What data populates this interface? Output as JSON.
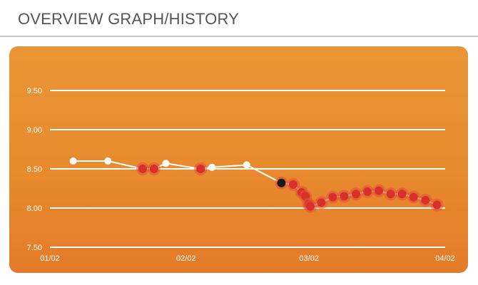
{
  "header": {
    "title": "OVERVIEW GRAPH/HISTORY"
  },
  "colors": {
    "background_top": "#e89636",
    "background_bottom": "#e47b2a",
    "line": "#ffffff",
    "point_white": "#ffffff",
    "point_red": "#d9302a",
    "point_red_halo": "#e0503a",
    "point_selected": "#1a1a1a"
  },
  "chart_data": {
    "type": "line",
    "title": "",
    "xlabel": "",
    "ylabel": "",
    "ylim": [
      7.5,
      9.5
    ],
    "yticks": [
      "9.50",
      "9.00",
      "8.50",
      "8.00",
      "7.50"
    ],
    "ytick_values": [
      9.5,
      9.0,
      8.5,
      8.0,
      7.5
    ],
    "xtick_labels": [
      "01/02",
      "02/02",
      "03/02",
      "04/02"
    ],
    "xtick_values": [
      0,
      31,
      59,
      90
    ],
    "xlim": [
      0,
      90
    ],
    "grid": true,
    "legend": "none",
    "series": [
      {
        "points": [
          {
            "x": 5.3,
            "y": 8.6,
            "kind": "white"
          },
          {
            "x": 13.2,
            "y": 8.6,
            "kind": "white"
          },
          {
            "x": 21.1,
            "y": 8.5,
            "kind": "red"
          },
          {
            "x": 23.7,
            "y": 8.5,
            "kind": "red"
          },
          {
            "x": 26.4,
            "y": 8.57,
            "kind": "white"
          },
          {
            "x": 34.3,
            "y": 8.5,
            "kind": "red"
          },
          {
            "x": 36.9,
            "y": 8.52,
            "kind": "white"
          },
          {
            "x": 44.8,
            "y": 8.55,
            "kind": "white"
          },
          {
            "x": 52.7,
            "y": 8.32,
            "kind": "selected"
          },
          {
            "x": 55.4,
            "y": 8.3,
            "kind": "red"
          },
          {
            "x": 57.3,
            "y": 8.2,
            "kind": "red"
          },
          {
            "x": 58.2,
            "y": 8.15,
            "kind": "red"
          },
          {
            "x": 58.9,
            "y": 8.05,
            "kind": "red"
          },
          {
            "x": 59.3,
            "y": 8.02,
            "kind": "red"
          },
          {
            "x": 61.8,
            "y": 8.07,
            "kind": "red"
          },
          {
            "x": 64.4,
            "y": 8.14,
            "kind": "red"
          },
          {
            "x": 67.0,
            "y": 8.15,
            "kind": "red"
          },
          {
            "x": 69.7,
            "y": 8.18,
            "kind": "red"
          },
          {
            "x": 72.3,
            "y": 8.21,
            "kind": "red"
          },
          {
            "x": 74.9,
            "y": 8.22,
            "kind": "red"
          },
          {
            "x": 77.6,
            "y": 8.18,
            "kind": "red"
          },
          {
            "x": 80.2,
            "y": 8.18,
            "kind": "red"
          },
          {
            "x": 82.8,
            "y": 8.14,
            "kind": "red"
          },
          {
            "x": 85.5,
            "y": 8.1,
            "kind": "red"
          },
          {
            "x": 88.1,
            "y": 8.04,
            "kind": "red"
          }
        ]
      }
    ]
  }
}
